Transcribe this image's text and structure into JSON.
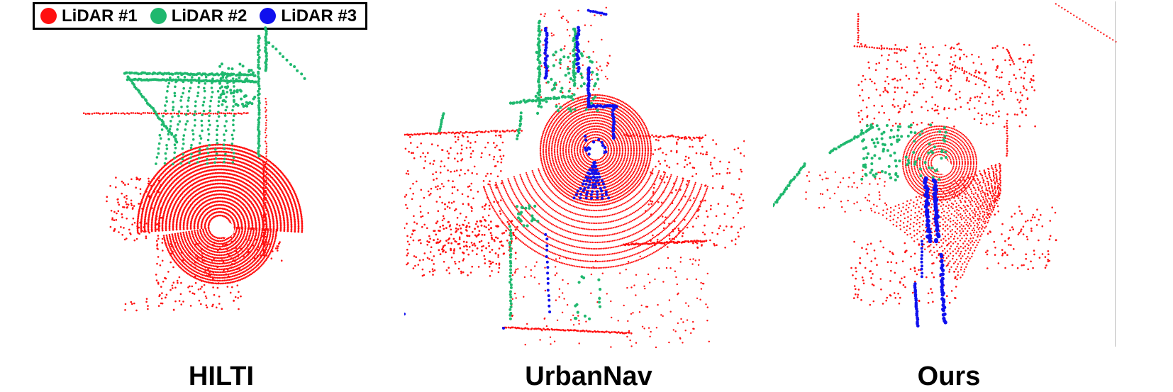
{
  "legend": {
    "items": [
      {
        "label": "LiDAR #1",
        "color": "#ff1010"
      },
      {
        "label": "LiDAR #2",
        "color": "#1fb86e"
      },
      {
        "label": "LiDAR #3",
        "color": "#1010ee"
      }
    ]
  },
  "panels": [
    {
      "caption": "HILTI"
    },
    {
      "caption": "UrbanNav"
    },
    {
      "caption": "Ours"
    }
  ]
}
